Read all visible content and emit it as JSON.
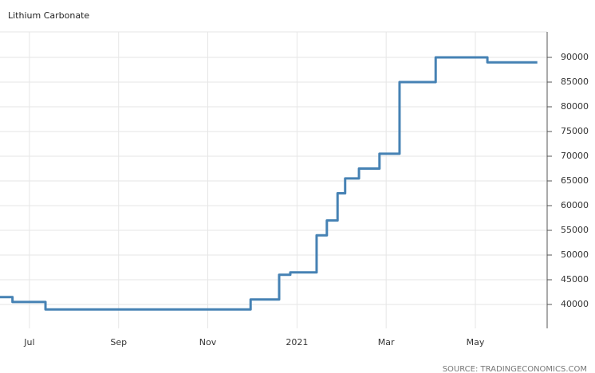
{
  "chart_data": {
    "type": "line",
    "title": "Lithium Carbonate",
    "source": "SOURCE: TRADINGECONOMICS.COM",
    "step": "post",
    "grid": true,
    "x": [
      6.34,
      6.62,
      7.36,
      11.96,
      12.6,
      12.85,
      13.44,
      13.67,
      13.91,
      14.08,
      14.39,
      14.85,
      15.3,
      16.11,
      17.27,
      18.39
    ],
    "series": [
      {
        "name": "Lithium Carbonate",
        "color": "#4682b4",
        "values": [
          41500,
          40500,
          39000,
          41000,
          46000,
          46500,
          54000,
          57000,
          62500,
          65500,
          67500,
          70500,
          85000,
          90000,
          89000,
          89000
        ]
      }
    ],
    "xlim": [
      6.34,
      18.61
    ],
    "xticks": [
      {
        "value": 7,
        "label": "Jul"
      },
      {
        "value": 9,
        "label": "Sep"
      },
      {
        "value": 11,
        "label": "Nov"
      },
      {
        "value": 13,
        "label": "2021"
      },
      {
        "value": 15,
        "label": "Mar"
      },
      {
        "value": 17,
        "label": "May"
      }
    ],
    "ylim": [
      35160,
      95160
    ],
    "yticks": [
      40000,
      45000,
      50000,
      55000,
      60000,
      65000,
      70000,
      75000,
      80000,
      85000,
      90000
    ]
  }
}
